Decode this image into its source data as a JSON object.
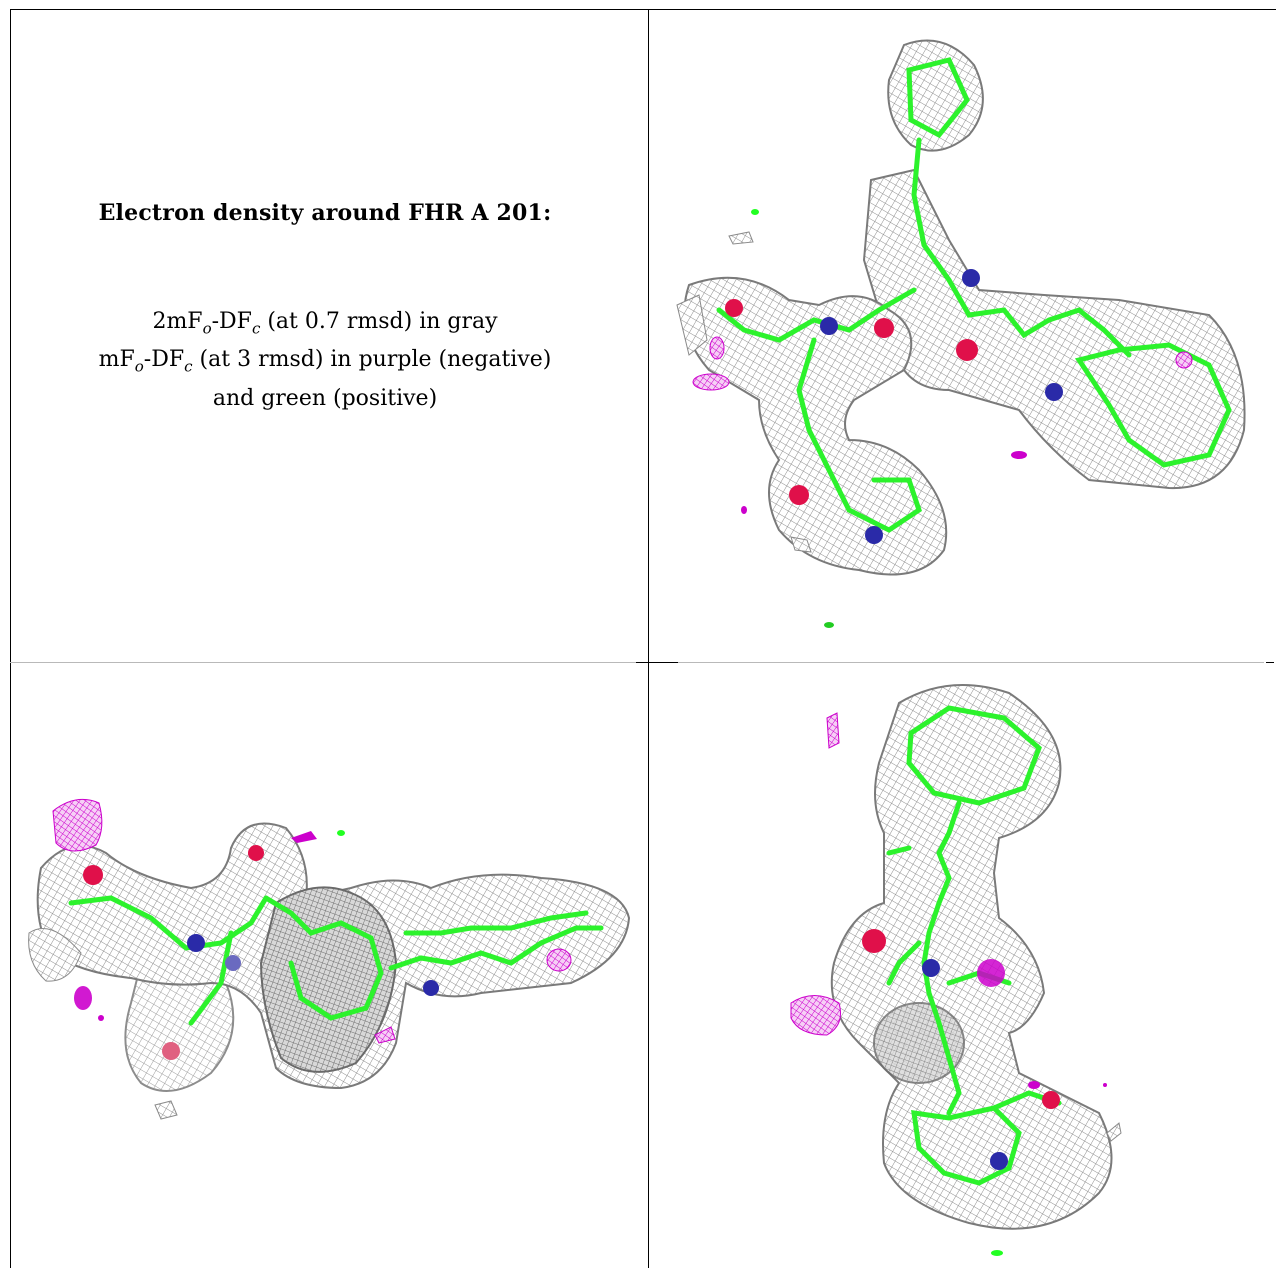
{
  "caption": {
    "title": "Electron density around FHR A 201:",
    "line1_prefix": "2mF",
    "line1_sub1": "o",
    "line1_mid": "-DF",
    "line1_sub2": "c",
    "line1_suffix": " (at 0.7 rmsd) in gray",
    "line2_prefix": "mF",
    "line2_sub1": "o",
    "line2_mid": "-DF",
    "line2_sub2": "c",
    "line2_suffix": " (at 3 rmsd) in purple (negative)",
    "line3": "and green (positive)"
  },
  "colors": {
    "mesh_gray": "#9a9a9a",
    "mesh_green": "#22ff22",
    "mesh_purple": "#cc00cc",
    "atom_oxygen": "#e0104a",
    "atom_nitrogen": "#2a2aa8",
    "frame": "#000000"
  },
  "views": [
    {
      "name": "density-view-top-right"
    },
    {
      "name": "density-view-bottom-left"
    },
    {
      "name": "density-view-bottom-right"
    }
  ]
}
